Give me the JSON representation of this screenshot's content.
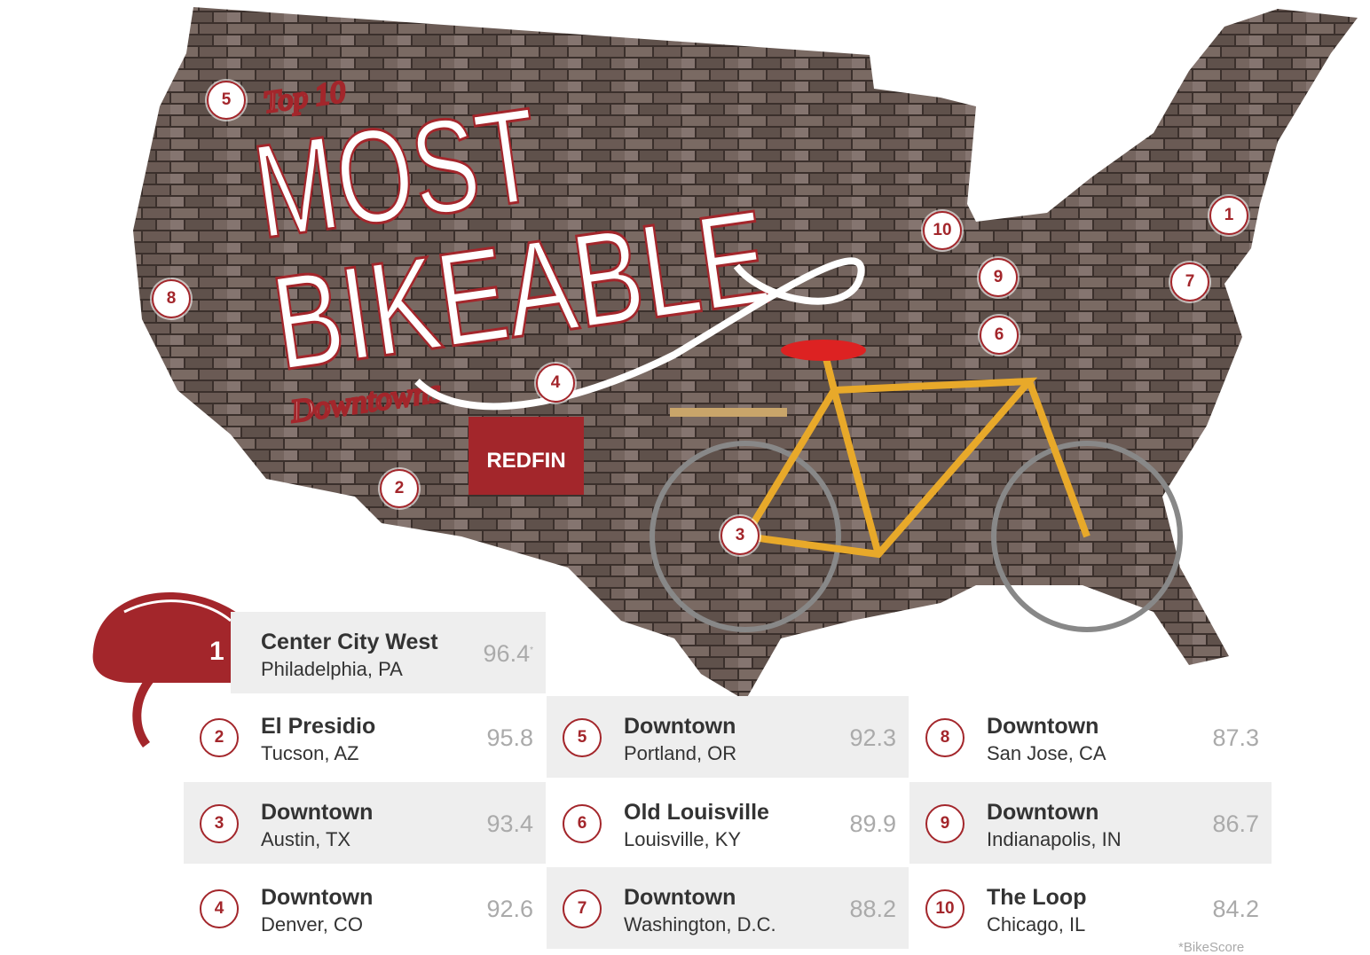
{
  "title": {
    "top": "Top 10",
    "line1": "MOST",
    "line2": "BIKEABLE",
    "line3": "Downtowns"
  },
  "brand": "REDFIN",
  "colors": {
    "accent": "#a3262b",
    "brick": "#6e5f58",
    "shade": "#eeeeee",
    "bike": "#e8a92a"
  },
  "markers": [
    {
      "rank": "5"
    },
    {
      "rank": "8"
    },
    {
      "rank": "2"
    },
    {
      "rank": "4"
    },
    {
      "rank": "3"
    },
    {
      "rank": "10"
    },
    {
      "rank": "9"
    },
    {
      "rank": "6"
    },
    {
      "rank": "1"
    },
    {
      "rank": "7"
    }
  ],
  "rankings": [
    {
      "rank": "1",
      "name": "Center City West",
      "city": "Philadelphia, PA",
      "score": "96.4",
      "mark": "*"
    },
    {
      "rank": "2",
      "name": "El Presidio",
      "city": "Tucson, AZ",
      "score": "95.8"
    },
    {
      "rank": "3",
      "name": "Downtown",
      "city": "Austin, TX",
      "score": "93.4"
    },
    {
      "rank": "4",
      "name": "Downtown",
      "city": "Denver, CO",
      "score": "92.6"
    },
    {
      "rank": "5",
      "name": "Downtown",
      "city": "Portland, OR",
      "score": "92.3"
    },
    {
      "rank": "6",
      "name": "Old Louisville",
      "city": "Louisville, KY",
      "score": "89.9"
    },
    {
      "rank": "7",
      "name": "Downtown",
      "city": "Washington, D.C.",
      "score": "88.2"
    },
    {
      "rank": "8",
      "name": "Downtown",
      "city": "San Jose, CA",
      "score": "87.3"
    },
    {
      "rank": "9",
      "name": "Downtown",
      "city": "Indianapolis, IN",
      "score": "86.7"
    },
    {
      "rank": "10",
      "name": "The Loop",
      "city": "Chicago, IL",
      "score": "84.2"
    }
  ],
  "footnote": "*BikeScore"
}
